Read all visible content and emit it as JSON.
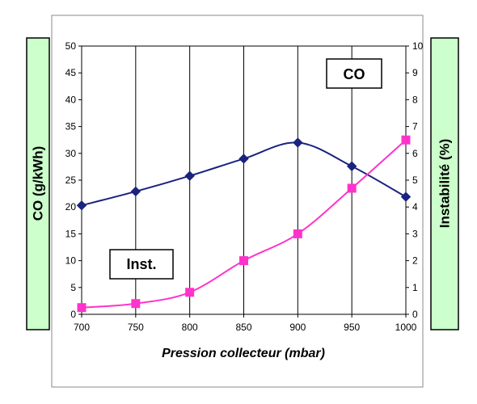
{
  "chart_data": {
    "type": "line",
    "xlabel": "Pression collecteur (mbar)",
    "x": [
      700,
      750,
      800,
      850,
      900,
      950,
      1000
    ],
    "xlim": [
      700,
      1000
    ],
    "x_ticks": [
      "700",
      "750",
      "800",
      "850",
      "900",
      "950",
      "1000"
    ],
    "left_axis": {
      "label": "CO (g/kWh)",
      "ylim": [
        0,
        50
      ],
      "ticks": [
        "0",
        "5",
        "10",
        "15",
        "20",
        "25",
        "30",
        "35",
        "40",
        "45",
        "50"
      ]
    },
    "right_axis": {
      "label": "Instabilité (%)",
      "ylim": [
        0,
        10
      ],
      "ticks": [
        "0",
        "1",
        "2",
        "3",
        "4",
        "5",
        "6",
        "7",
        "8",
        "9",
        "10"
      ]
    },
    "series": [
      {
        "name": "CO",
        "axis": "left",
        "marker": "diamond",
        "color": "#1a237e",
        "values": [
          20.3,
          22.9,
          25.8,
          29.0,
          32.0,
          27.6,
          21.9
        ]
      },
      {
        "name": "Inst.",
        "axis": "right",
        "marker": "square",
        "color": "#ff33cc",
        "values": [
          0.25,
          0.4,
          0.82,
          2.0,
          3.0,
          4.7,
          6.5
        ]
      }
    ],
    "grid": {
      "x": true,
      "y": false
    },
    "annotations": [
      "CO",
      "Inst."
    ]
  },
  "colors": {
    "axis_box_fill": "#ccffcc",
    "grid": "#000000"
  }
}
